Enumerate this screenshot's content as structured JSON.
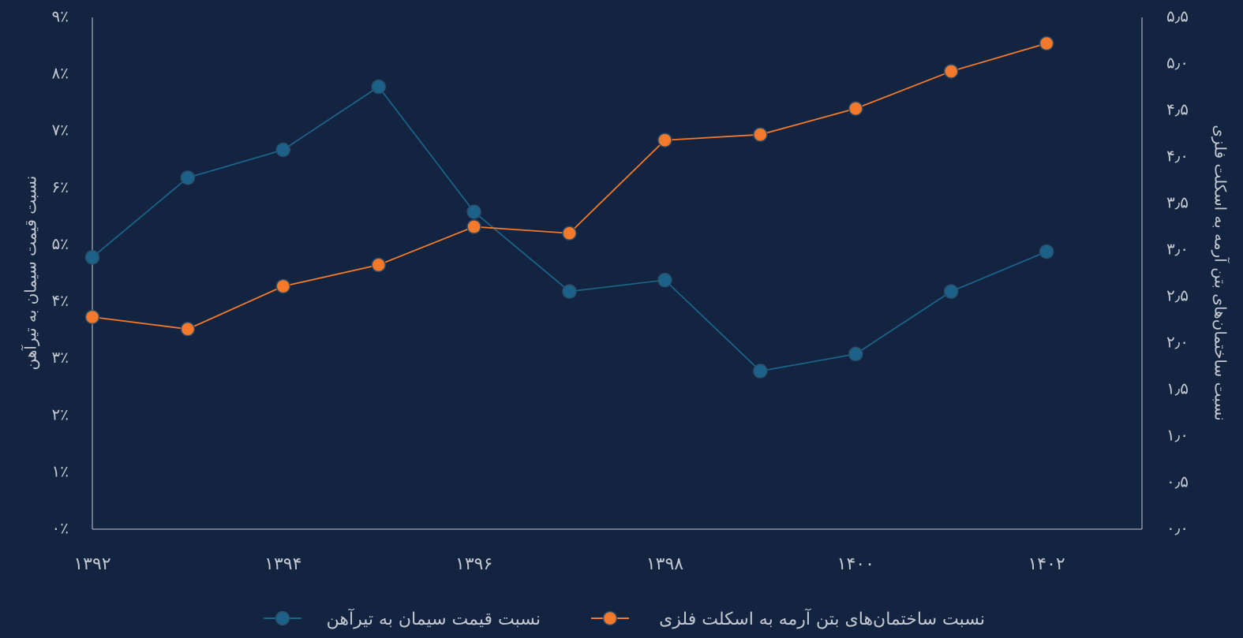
{
  "chart_data": {
    "type": "line",
    "x": [
      1392,
      1393,
      1394,
      1395,
      1396,
      1397,
      1398,
      1399,
      1400,
      1401,
      1402
    ],
    "xlim": [
      1392,
      1403
    ],
    "xticks": [
      {
        "value": 1392,
        "label": "۱۳۹۲"
      },
      {
        "value": 1394,
        "label": "۱۳۹۴"
      },
      {
        "value": 1396,
        "label": "۱۳۹۶"
      },
      {
        "value": 1398,
        "label": "۱۳۹۸"
      },
      {
        "value": 1400,
        "label": "۱۴۰۰"
      },
      {
        "value": 1402,
        "label": "۱۴۰۲"
      }
    ],
    "ylabel": "نسبت قیمت سیمان به تیرآهن",
    "y2label": "نسبت ساختمان‌های بتن آرمه به اسکلت فلزی",
    "ylim": [
      0,
      9
    ],
    "yticks": [
      {
        "value": 0,
        "label": "۰٪"
      },
      {
        "value": 1,
        "label": "۱٪"
      },
      {
        "value": 2,
        "label": "۲٪"
      },
      {
        "value": 3,
        "label": "۳٪"
      },
      {
        "value": 4,
        "label": "۴٪"
      },
      {
        "value": 5,
        "label": "۵٪"
      },
      {
        "value": 6,
        "label": "۶٪"
      },
      {
        "value": 7,
        "label": "۷٪"
      },
      {
        "value": 8,
        "label": "۸٪"
      },
      {
        "value": 9,
        "label": "۹٪"
      }
    ],
    "y2lim": [
      0,
      5.5
    ],
    "y2ticks": [
      {
        "value": 0,
        "label": "۰٫۰"
      },
      {
        "value": 0.5,
        "label": "۰٫۵"
      },
      {
        "value": 1,
        "label": "۱٫۰"
      },
      {
        "value": 1.5,
        "label": "۱٫۵"
      },
      {
        "value": 2,
        "label": "۲٫۰"
      },
      {
        "value": 2.5,
        "label": "۲٫۵"
      },
      {
        "value": 3,
        "label": "۳٫۰"
      },
      {
        "value": 3.5,
        "label": "۳٫۵"
      },
      {
        "value": 4,
        "label": "۴٫۰"
      },
      {
        "value": 4.5,
        "label": "۴٫۵"
      },
      {
        "value": 5,
        "label": "۵٫۰"
      },
      {
        "value": 5.5,
        "label": "۵٫۵"
      }
    ],
    "series": [
      {
        "name": "نسبت قیمت سیمان به تیرآهن",
        "color": "#1c6288",
        "values": [
          4.78,
          6.18,
          6.67,
          7.78,
          5.58,
          4.18,
          4.38,
          2.78,
          3.08,
          4.18,
          4.88
        ]
      },
      {
        "name": "نسبت ساختمان‌های بتن آرمه به اسکلت فلزی",
        "color": "#f5792a",
        "axis": "y2",
        "values": [
          2.28,
          2.15,
          2.61,
          2.84,
          3.25,
          3.18,
          4.18,
          4.24,
          4.52,
          4.92,
          5.22
        ]
      }
    ]
  }
}
